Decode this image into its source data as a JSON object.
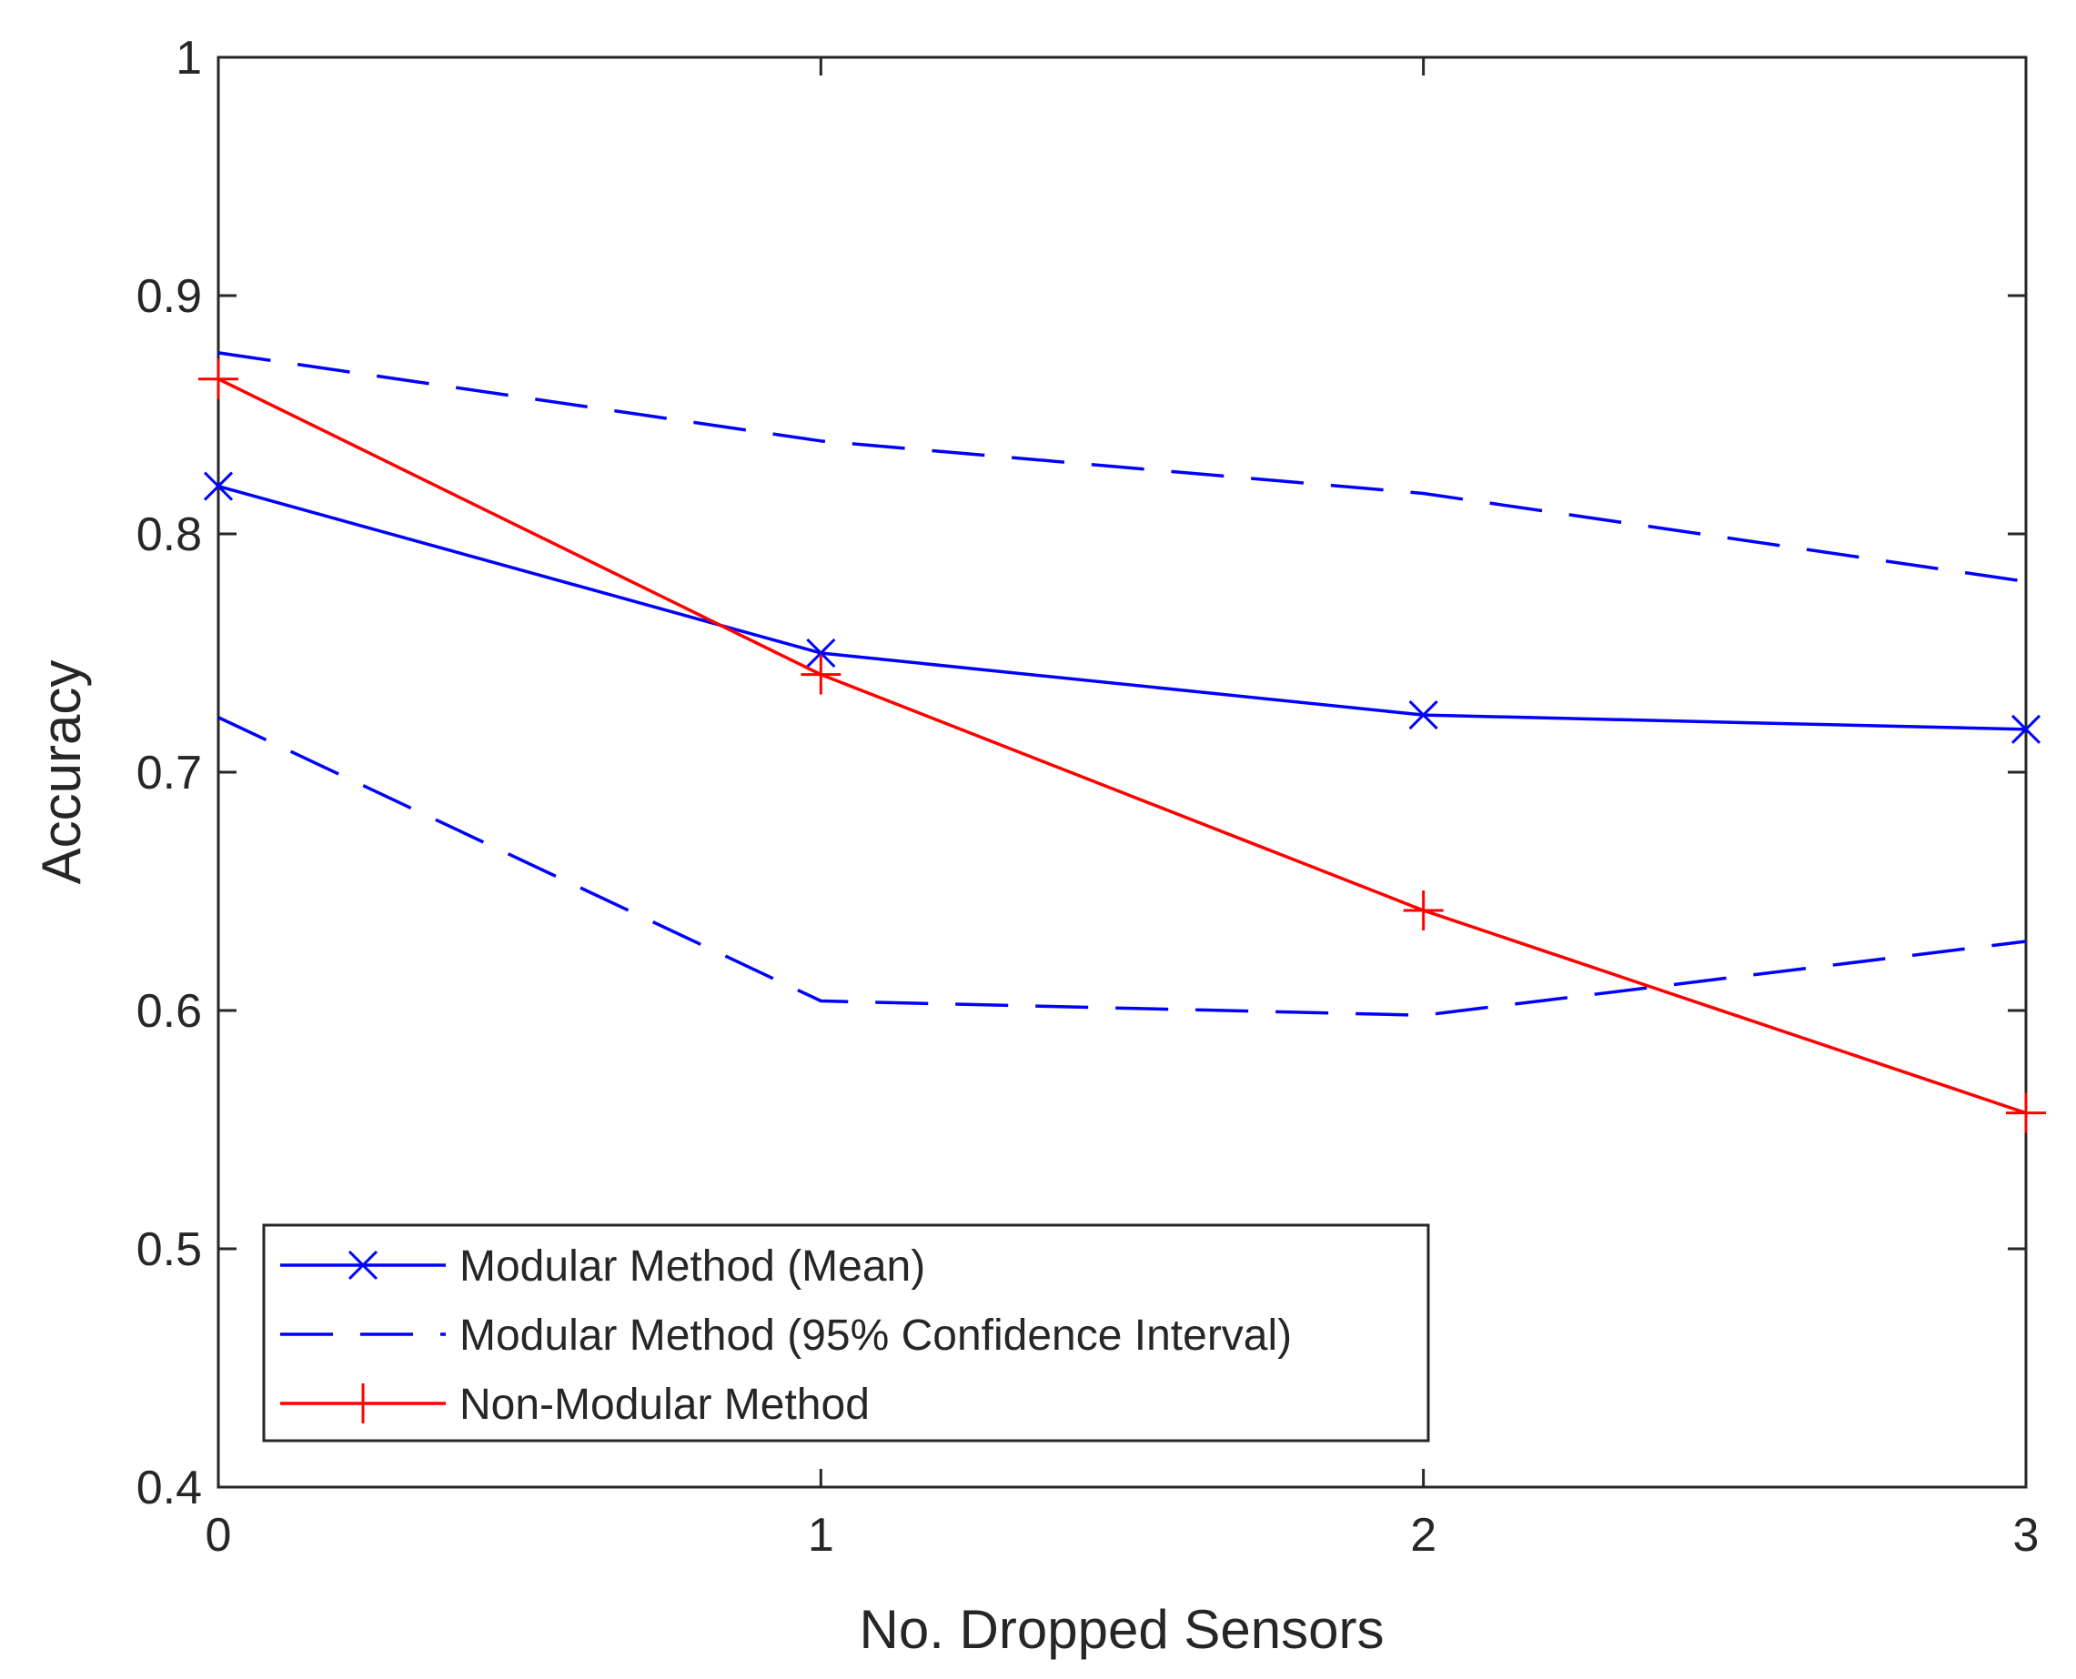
{
  "chart_data": {
    "type": "line",
    "title": "",
    "xlabel": "No. Dropped Sensors",
    "ylabel": "Accuracy",
    "x": [
      0,
      1,
      2,
      3
    ],
    "xlim": [
      0,
      3
    ],
    "ylim": [
      0.4,
      1
    ],
    "xticks": [
      "0",
      "1",
      "2",
      "3"
    ],
    "yticks": [
      "0.4",
      "0.5",
      "0.6",
      "0.7",
      "0.8",
      "0.9",
      "1"
    ],
    "grid": false,
    "legend_position": "bottom-left",
    "series": [
      {
        "name": "Modular Method (Mean)",
        "style": "solid",
        "marker": "x",
        "color": "#0000ff",
        "values": [
          0.82,
          0.75,
          0.724,
          0.718
        ]
      },
      {
        "name": "Modular Method (95% Confidence Interval)",
        "style": "dashed",
        "marker": "none",
        "color": "#0000ff",
        "values": [
          0.876,
          0.839,
          0.817,
          0.78
        ]
      },
      {
        "name": "",
        "style": "dashed",
        "marker": "none",
        "color": "#0000ff",
        "values": [
          0.723,
          0.604,
          0.598,
          0.629
        ]
      },
      {
        "name": "Non-Modular Method",
        "style": "solid",
        "marker": "+",
        "color": "#ff0000",
        "values": [
          0.865,
          0.741,
          0.642,
          0.557
        ]
      }
    ]
  }
}
